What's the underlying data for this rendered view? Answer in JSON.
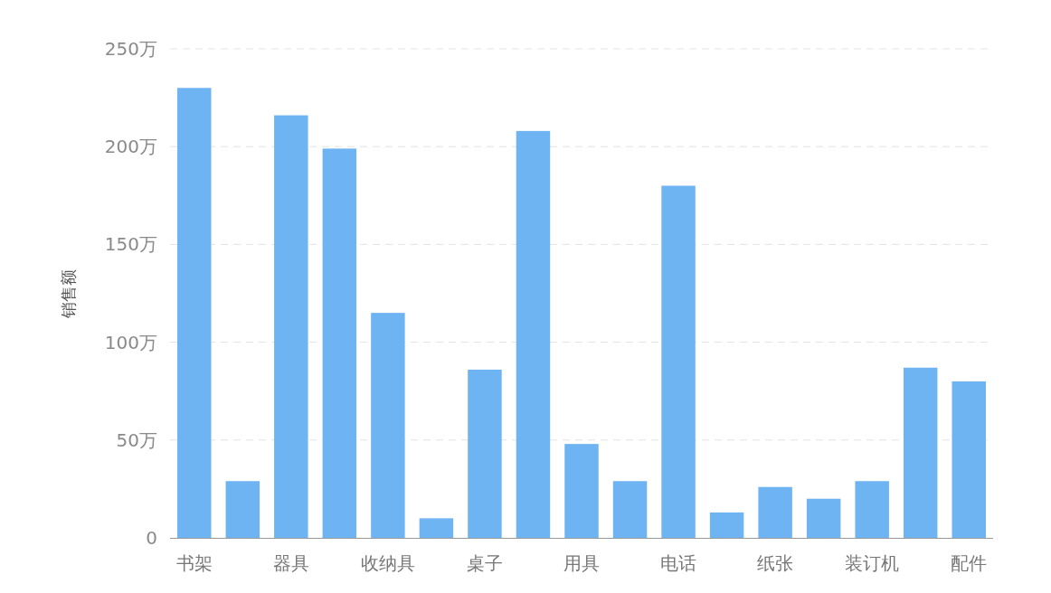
{
  "chart_data": {
    "type": "bar",
    "ylabel": "销售额",
    "categories": [
      "书架",
      null,
      "器具",
      null,
      "收纳具",
      null,
      "桌子",
      null,
      "用具",
      null,
      "电话",
      null,
      "纸张",
      null,
      "装订机",
      null,
      "配件"
    ],
    "values": [
      230,
      29,
      216,
      199,
      115,
      10,
      86,
      208,
      48,
      29,
      180,
      13,
      26,
      20,
      29,
      87,
      80
    ],
    "color": "#6eb3f2",
    "ylim": [
      0,
      250
    ],
    "yticks": [
      0,
      {
        "value": 50,
        "label": "50万"
      },
      {
        "value": 100,
        "label": "100万"
      },
      {
        "value": 150,
        "label": "150万"
      },
      {
        "value": 200,
        "label": "200万"
      },
      {
        "value": 250,
        "label": "250万"
      }
    ],
    "grid": "y"
  }
}
